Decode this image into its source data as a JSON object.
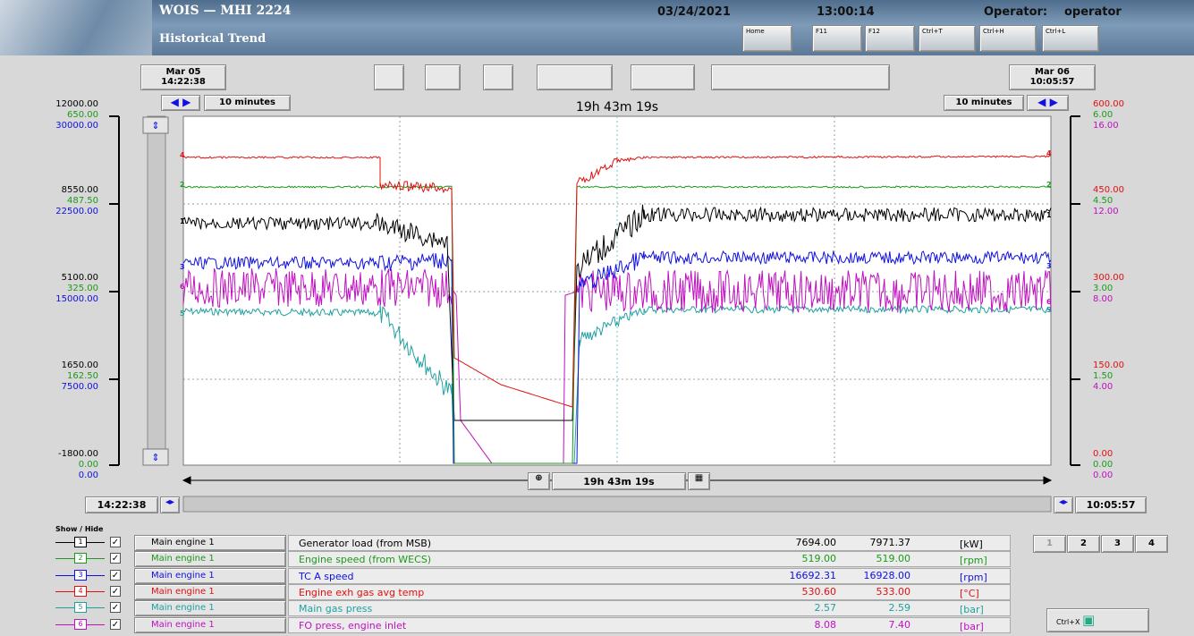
{
  "header": {
    "app_title": "WOIS — MHI 2224",
    "screen_title": "Historical Trend",
    "date": "03/24/2021",
    "time": "13:00:14",
    "operator_label": "Operator:",
    "operator": "operator",
    "buttons": [
      "Home",
      "F11",
      "F12",
      "Ctrl+T",
      "Ctrl+H",
      "Ctrl+L"
    ]
  },
  "toolbar": {
    "start_date": "Mar 05",
    "start_time": "14:22:38",
    "end_date": "Mar 06",
    "end_time": "10:05:57",
    "left_step": "10 minutes",
    "right_step": "10 minutes",
    "span": "19h 43m 19s"
  },
  "left_axes": [
    [
      "12000.00",
      "650.00",
      "30000.00"
    ],
    [
      "8550.00",
      "487.50",
      "22500.00"
    ],
    [
      "5100.00",
      "325.00",
      "15000.00"
    ],
    [
      "1650.00",
      "162.50",
      "7500.00"
    ],
    [
      "-1800.00",
      "0.00",
      "0.00"
    ]
  ],
  "right_axes": [
    [
      "600.00",
      "6.00",
      "16.00"
    ],
    [
      "450.00",
      "4.50",
      "12.00"
    ],
    [
      "300.00",
      "3.00",
      "8.00"
    ],
    [
      "150.00",
      "1.50",
      "4.00"
    ],
    [
      "0.00",
      "0.00",
      "0.00"
    ]
  ],
  "bottom": {
    "start_time": "14:22:38",
    "end_time": "10:05:57",
    "span": "19h 43m 19s"
  },
  "pens": {
    "show_hide": "Show / Hide",
    "rows": [
      {
        "number": "1",
        "group": "Main engine 1",
        "name": "Generator load (from MSB)",
        "value1": "7694.00",
        "value2": "7971.37",
        "unit": "[kW]",
        "color": "#000000"
      },
      {
        "number": "2",
        "group": "Main engine 1",
        "name": "Engine speed (from WECS)",
        "value1": "519.00",
        "value2": "519.00",
        "unit": "[rpm]",
        "color": "#1a9a1a"
      },
      {
        "number": "3",
        "group": "Main engine 1",
        "name": "TC A speed",
        "value1": "16692.31",
        "value2": "16928.00",
        "unit": "[rpm]",
        "color": "#1010e0"
      },
      {
        "number": "4",
        "group": "Main engine 1",
        "name": "Engine exh gas avg temp",
        "value1": "530.60",
        "value2": "533.00",
        "unit": "[°C]",
        "color": "#e01010"
      },
      {
        "number": "5",
        "group": "Main engine 1",
        "name": "Main gas press",
        "value1": "2.57",
        "value2": "2.59",
        "unit": "[bar]",
        "color": "#20a0a0"
      },
      {
        "number": "6",
        "group": "Main engine 1",
        "name": "FO press, engine inlet",
        "value1": "8.08",
        "value2": "7.40",
        "unit": "[bar]",
        "color": "#c010c0"
      }
    ]
  },
  "pages": [
    "1",
    "2",
    "3",
    "4"
  ],
  "exit_button": "Ctrl+X"
}
